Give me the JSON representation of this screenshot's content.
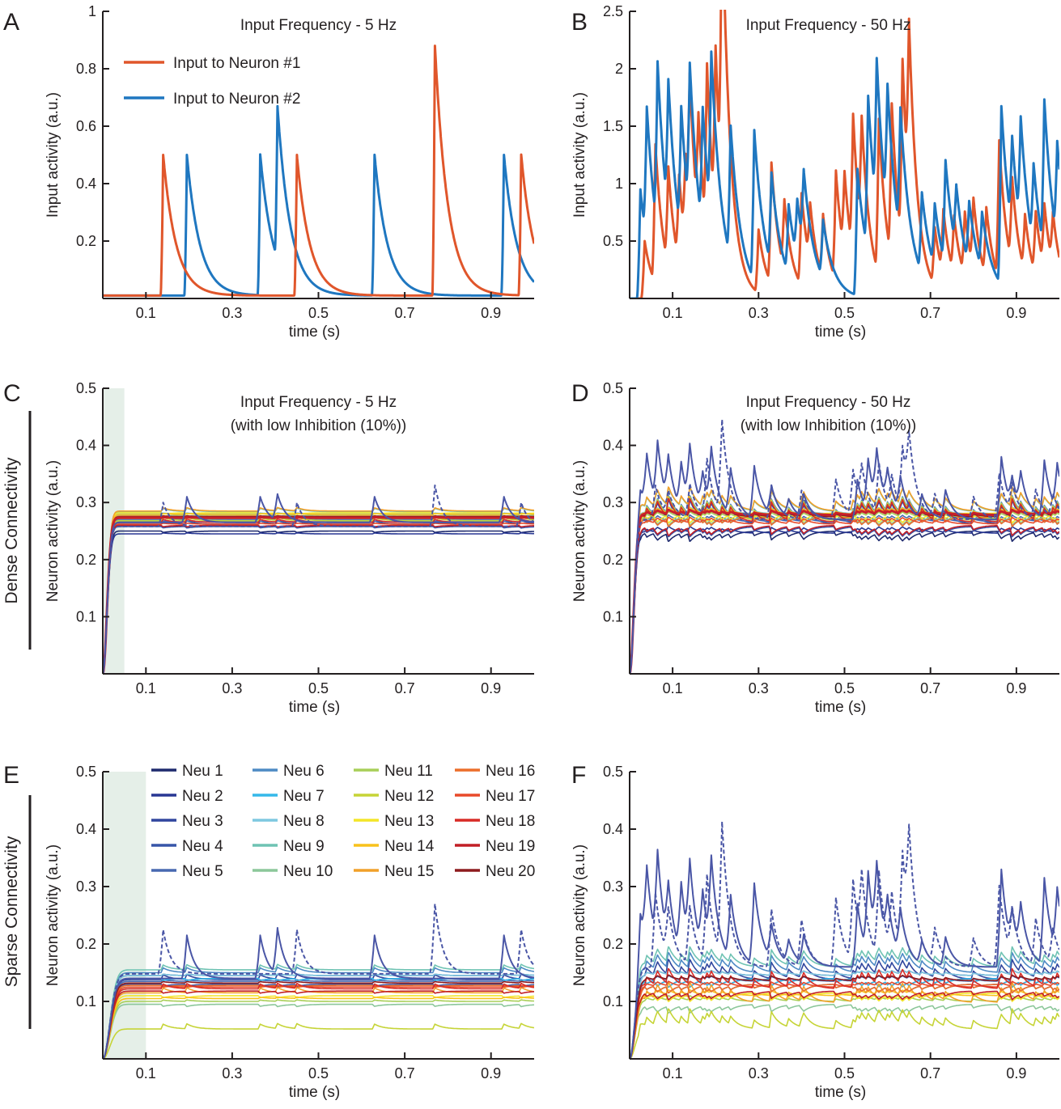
{
  "panel_letters": [
    "A",
    "B",
    "C",
    "D",
    "E",
    "F"
  ],
  "side_labels": {
    "dense": "Dense Connectivity",
    "sparse": "Sparse Connectivity"
  },
  "colors": {
    "input1": "#e0562b",
    "input2": "#1f77c0",
    "shade": "#e5efe8",
    "neurons": [
      "#1e2a6e",
      "#283793",
      "#30469e",
      "#3755a8",
      "#4869b1",
      "#4d8ac4",
      "#35b8e9",
      "#7ec8e0",
      "#6fc3b3",
      "#8cc79a",
      "#a8cf58",
      "#c6d436",
      "#f3e628",
      "#f8c21c",
      "#f1a02a",
      "#ec6e2a",
      "#e84a2a",
      "#d82b26",
      "#c21f26",
      "#8e1b1e"
    ]
  },
  "chart_data": [
    {
      "id": "A",
      "type": "line",
      "title": [
        "Input Frequency - 5 Hz"
      ],
      "xlabel": "time (s)",
      "ylabel": "Input activity (a.u.)",
      "xlim": [
        0,
        1
      ],
      "ylim": [
        0,
        1
      ],
      "xticks": [
        0.1,
        0.3,
        0.5,
        0.7,
        0.9
      ],
      "xtick_labels": [
        "0.1",
        "0.3",
        "0.5",
        "0.7",
        "0.9"
      ],
      "yticks": [
        0.2,
        0.4,
        0.6,
        0.8,
        1
      ],
      "ytick_labels": [
        "0.2",
        "0.4",
        "0.6",
        "0.8",
        "1"
      ],
      "legend": [
        "Input to Neuron #1",
        "Input to Neuron #2"
      ],
      "series": [
        {
          "name": "Input to Neuron #1",
          "baseline": 0.01,
          "tau": 0.03,
          "peaks": [
            [
              0.14,
              0.5
            ],
            [
              0.45,
              0.5
            ],
            [
              0.77,
              0.88
            ],
            [
              0.97,
              0.5
            ]
          ]
        },
        {
          "name": "Input to Neuron #2",
          "baseline": 0.01,
          "tau": 0.03,
          "peaks": [
            [
              0.195,
              0.5
            ],
            [
              0.365,
              0.5
            ],
            [
              0.405,
              0.54
            ],
            [
              0.63,
              0.5
            ],
            [
              0.93,
              0.5
            ]
          ]
        }
      ]
    },
    {
      "id": "B",
      "type": "line",
      "title": [
        "Input Frequency - 50 Hz"
      ],
      "xlabel": "time (s)",
      "ylabel": "Input activity (a.u.)",
      "xlim": [
        0,
        1
      ],
      "ylim": [
        0,
        2.5
      ],
      "xticks": [
        0.1,
        0.3,
        0.5,
        0.7,
        0.9
      ],
      "xtick_labels": [
        "0.1",
        "0.3",
        "0.5",
        "0.7",
        "0.9"
      ],
      "yticks": [
        0.5,
        1,
        1.5,
        2,
        2.5
      ],
      "ytick_labels": [
        "0.5",
        "1",
        "1.5",
        "2",
        "2.5"
      ],
      "series": [
        {
          "name": "Input to Neuron #1",
          "baseline": 0,
          "tau": 0.02,
          "peaks": [
            [
              0.035,
              0.5
            ],
            [
              0.06,
              1.2
            ],
            [
              0.09,
              0.85
            ],
            [
              0.115,
              0.75
            ],
            [
              0.13,
              0.75
            ],
            [
              0.14,
              1.2
            ],
            [
              0.16,
              0.9
            ],
            [
              0.18,
              1.45
            ],
            [
              0.2,
              1.45
            ],
            [
              0.215,
              2.45
            ],
            [
              0.3,
              0.55
            ],
            [
              0.33,
              1.05
            ],
            [
              0.36,
              0.6
            ],
            [
              0.4,
              0.8
            ],
            [
              0.42,
              0.5
            ],
            [
              0.45,
              0.55
            ],
            [
              0.48,
              0.95
            ],
            [
              0.5,
              0.7
            ],
            [
              0.52,
              1.2
            ],
            [
              0.54,
              1.0
            ],
            [
              0.58,
              1.35
            ],
            [
              0.61,
              1.35
            ],
            [
              0.635,
              1.6
            ],
            [
              0.65,
              1.45
            ],
            [
              0.71,
              0.5
            ],
            [
              0.73,
              0.55
            ],
            [
              0.755,
              0.5
            ],
            [
              0.78,
              0.55
            ],
            [
              0.8,
              0.6
            ],
            [
              0.83,
              0.6
            ],
            [
              0.86,
              1.2
            ],
            [
              0.89,
              0.75
            ],
            [
              0.92,
              0.5
            ],
            [
              0.945,
              0.55
            ],
            [
              0.965,
              0.55
            ],
            [
              0.985,
              0.45
            ]
          ]
        },
        {
          "name": "Input to Neuron #2",
          "baseline": 0,
          "tau": 0.025,
          "peaks": [
            [
              0.025,
              0.95
            ],
            [
              0.04,
              1.15
            ],
            [
              0.065,
              1.45
            ],
            [
              0.09,
              1.15
            ],
            [
              0.12,
              1.1
            ],
            [
              0.14,
              1.3
            ],
            [
              0.17,
              1.05
            ],
            [
              0.19,
              1.4
            ],
            [
              0.235,
              1.15
            ],
            [
              0.29,
              1.3
            ],
            [
              0.33,
              0.8
            ],
            [
              0.37,
              0.6
            ],
            [
              0.39,
              0.5
            ],
            [
              0.405,
              0.65
            ],
            [
              0.45,
              0.5
            ],
            [
              0.53,
              1.1
            ],
            [
              0.555,
              1.35
            ],
            [
              0.575,
              1.3
            ],
            [
              0.6,
              1.1
            ],
            [
              0.63,
              1.1
            ],
            [
              0.68,
              0.7
            ],
            [
              0.71,
              0.55
            ],
            [
              0.735,
              0.9
            ],
            [
              0.76,
              0.55
            ],
            [
              0.79,
              0.55
            ],
            [
              0.82,
              0.5
            ],
            [
              0.865,
              1.55
            ],
            [
              0.89,
              0.8
            ],
            [
              0.91,
              0.95
            ],
            [
              0.94,
              0.7
            ],
            [
              0.965,
              1.3
            ],
            [
              0.995,
              0.85
            ]
          ]
        }
      ]
    },
    {
      "id": "C",
      "type": "line",
      "title": [
        "Input Frequency - 5 Hz",
        "(with low Inhibition (10%))"
      ],
      "xlabel": "time (s)",
      "ylabel": "Neuron activity (a.u.)",
      "xlim": [
        0,
        1
      ],
      "ylim": [
        0,
        0.5
      ],
      "xticks": [
        0.1,
        0.3,
        0.5,
        0.7,
        0.9
      ],
      "xtick_labels": [
        "0.1",
        "0.3",
        "0.5",
        "0.7",
        "0.9"
      ],
      "yticks": [
        0.1,
        0.2,
        0.3,
        0.4,
        0.5
      ],
      "ytick_labels": [
        "0.1",
        "0.2",
        "0.3",
        "0.4",
        "0.5"
      ],
      "shade_x": [
        0,
        0.05
      ],
      "rise_tau": 0.012,
      "levels": [
        0.25,
        0.245,
        0.262,
        0.258,
        0.266,
        0.27,
        0.276,
        0.28,
        0.284,
        0.278,
        0.272,
        0.268,
        0.282,
        0.279,
        0.285,
        0.276,
        0.262,
        0.265,
        0.26,
        0.275
      ],
      "bump_scale": 0.004,
      "red_highlight": 0.273,
      "active_solid": {
        "level": 0.265,
        "peaks": [
          [
            0.195,
            0.31
          ],
          [
            0.365,
            0.31
          ],
          [
            0.405,
            0.31
          ],
          [
            0.63,
            0.31
          ],
          [
            0.93,
            0.31
          ]
        ]
      },
      "active_dashed": {
        "level": 0.258,
        "peaks": [
          [
            0.14,
            0.3
          ],
          [
            0.45,
            0.3
          ],
          [
            0.77,
            0.33
          ],
          [
            0.97,
            0.3
          ]
        ]
      }
    },
    {
      "id": "D",
      "type": "line",
      "title": [
        "Input Frequency - 50 Hz",
        "(with low Inhibition (10%))"
      ],
      "xlabel": "time (s)",
      "ylabel": "Neuron activity (a.u.)",
      "xlim": [
        0,
        1
      ],
      "ylim": [
        0,
        0.5
      ],
      "xticks": [
        0.1,
        0.3,
        0.5,
        0.7,
        0.9
      ],
      "xtick_labels": [
        "0.1",
        "0.3",
        "0.5",
        "0.7",
        "0.9"
      ],
      "yticks": [
        0.1,
        0.2,
        0.3,
        0.4,
        0.5
      ],
      "ytick_labels": [
        "0.1",
        "0.2",
        "0.3",
        "0.4",
        "0.5"
      ],
      "rise_tau": 0.012,
      "levels": [
        0.25,
        0.246,
        0.262,
        0.258,
        0.266,
        0.27,
        0.276,
        0.28,
        0.284,
        0.278,
        0.272,
        0.268,
        0.282,
        0.279,
        0.285,
        0.276,
        0.262,
        0.265,
        0.26,
        0.275
      ],
      "bump_scale": 0.012,
      "red_highlight": 0.278,
      "active_solid": {
        "level": 0.27,
        "peaks": [
          [
            0.025,
            0.33
          ],
          [
            0.04,
            0.36
          ],
          [
            0.065,
            0.38
          ],
          [
            0.09,
            0.35
          ],
          [
            0.12,
            0.35
          ],
          [
            0.14,
            0.37
          ],
          [
            0.17,
            0.33
          ],
          [
            0.19,
            0.37
          ],
          [
            0.235,
            0.35
          ],
          [
            0.29,
            0.36
          ],
          [
            0.33,
            0.32
          ],
          [
            0.37,
            0.3
          ],
          [
            0.405,
            0.31
          ],
          [
            0.53,
            0.34
          ],
          [
            0.555,
            0.36
          ],
          [
            0.575,
            0.36
          ],
          [
            0.6,
            0.33
          ],
          [
            0.63,
            0.33
          ],
          [
            0.68,
            0.31
          ],
          [
            0.735,
            0.32
          ],
          [
            0.865,
            0.38
          ],
          [
            0.89,
            0.32
          ],
          [
            0.91,
            0.33
          ],
          [
            0.965,
            0.37
          ],
          [
            0.995,
            0.35
          ]
        ]
      },
      "active_dashed": {
        "level": 0.27,
        "peaks": [
          [
            0.06,
            0.33
          ],
          [
            0.09,
            0.31
          ],
          [
            0.14,
            0.33
          ],
          [
            0.18,
            0.37
          ],
          [
            0.215,
            0.43
          ],
          [
            0.33,
            0.33
          ],
          [
            0.4,
            0.32
          ],
          [
            0.48,
            0.34
          ],
          [
            0.52,
            0.35
          ],
          [
            0.54,
            0.34
          ],
          [
            0.58,
            0.36
          ],
          [
            0.61,
            0.33
          ],
          [
            0.635,
            0.38
          ],
          [
            0.65,
            0.37
          ],
          [
            0.71,
            0.31
          ],
          [
            0.8,
            0.31
          ],
          [
            0.86,
            0.35
          ],
          [
            0.89,
            0.32
          ],
          [
            0.945,
            0.32
          ],
          [
            0.985,
            0.31
          ]
        ]
      }
    },
    {
      "id": "E",
      "type": "line",
      "title": [],
      "xlabel": "time (s)",
      "ylabel": "Neuron activity (a.u.)",
      "xlim": [
        0,
        1
      ],
      "ylim": [
        0,
        0.5
      ],
      "xticks": [
        0.1,
        0.3,
        0.5,
        0.7,
        0.9
      ],
      "xtick_labels": [
        "0.1",
        "0.3",
        "0.5",
        "0.7",
        "0.9"
      ],
      "yticks": [
        0.1,
        0.2,
        0.3,
        0.4,
        0.5
      ],
      "ytick_labels": [
        "0.1",
        "0.2",
        "0.3",
        "0.4",
        "0.5"
      ],
      "shade_x": [
        0,
        0.1
      ],
      "rise_tau": 0.02,
      "levels": [
        0.14,
        0.145,
        0.138,
        0.13,
        0.135,
        0.15,
        0.14,
        0.145,
        0.155,
        0.095,
        0.1,
        0.052,
        0.11,
        0.105,
        0.115,
        0.128,
        0.125,
        0.122,
        0.118,
        0.132
      ],
      "bump_scale": 0.006,
      "red_highlight": null,
      "active_solid": {
        "level": 0.14,
        "peaks": [
          [
            0.195,
            0.215
          ],
          [
            0.365,
            0.215
          ],
          [
            0.405,
            0.22
          ],
          [
            0.63,
            0.215
          ],
          [
            0.93,
            0.215
          ]
        ]
      },
      "active_dashed": {
        "level": 0.148,
        "peaks": [
          [
            0.14,
            0.225
          ],
          [
            0.45,
            0.225
          ],
          [
            0.77,
            0.27
          ],
          [
            0.97,
            0.225
          ]
        ]
      },
      "legend": [
        "Neu 1",
        "Neu 2",
        "Neu 3",
        "Neu 4",
        "Neu 5",
        "Neu 6",
        "Neu 7",
        "Neu 8",
        "Neu 9",
        "Neu 10",
        "Neu 11",
        "Neu 12",
        "Neu 13",
        "Neu 14",
        "Neu 15",
        "Neu 16",
        "Neu 17",
        "Neu 18",
        "Neu 19",
        "Neu 20"
      ]
    },
    {
      "id": "F",
      "type": "line",
      "title": [],
      "xlabel": "time (s)",
      "ylabel": "Neuron activity (a.u.)",
      "xlim": [
        0,
        1
      ],
      "ylim": [
        0,
        0.5
      ],
      "xticks": [
        0.1,
        0.3,
        0.5,
        0.7,
        0.9
      ],
      "xtick_labels": [
        "0.1",
        "0.3",
        "0.5",
        "0.7",
        "0.9"
      ],
      "yticks": [
        0.1,
        0.2,
        0.3,
        0.4,
        0.5
      ],
      "ytick_labels": [
        "0.1",
        "0.2",
        "0.3",
        "0.4",
        "0.5"
      ],
      "rise_tau": 0.015,
      "levels": [
        0.14,
        0.145,
        0.138,
        0.13,
        0.135,
        0.15,
        0.14,
        0.145,
        0.16,
        0.095,
        0.1,
        0.052,
        0.115,
        0.11,
        0.098,
        0.13,
        0.125,
        0.122,
        0.118,
        0.136
      ],
      "bump_scale": 0.01,
      "red_highlight": null,
      "active_solid": {
        "level": 0.16,
        "peaks": [
          [
            0.025,
            0.27
          ],
          [
            0.04,
            0.29
          ],
          [
            0.065,
            0.32
          ],
          [
            0.09,
            0.26
          ],
          [
            0.12,
            0.28
          ],
          [
            0.14,
            0.3
          ],
          [
            0.17,
            0.26
          ],
          [
            0.19,
            0.31
          ],
          [
            0.235,
            0.27
          ],
          [
            0.29,
            0.3
          ],
          [
            0.33,
            0.22
          ],
          [
            0.37,
            0.2
          ],
          [
            0.405,
            0.21
          ],
          [
            0.53,
            0.27
          ],
          [
            0.555,
            0.3
          ],
          [
            0.575,
            0.29
          ],
          [
            0.6,
            0.24
          ],
          [
            0.63,
            0.24
          ],
          [
            0.68,
            0.2
          ],
          [
            0.735,
            0.21
          ],
          [
            0.865,
            0.33
          ],
          [
            0.89,
            0.22
          ],
          [
            0.91,
            0.24
          ],
          [
            0.965,
            0.31
          ],
          [
            0.995,
            0.27
          ]
        ]
      },
      "active_dashed": {
        "level": 0.16,
        "peaks": [
          [
            0.06,
            0.29
          ],
          [
            0.09,
            0.24
          ],
          [
            0.14,
            0.26
          ],
          [
            0.18,
            0.31
          ],
          [
            0.215,
            0.39
          ],
          [
            0.33,
            0.26
          ],
          [
            0.4,
            0.24
          ],
          [
            0.48,
            0.28
          ],
          [
            0.52,
            0.3
          ],
          [
            0.54,
            0.28
          ],
          [
            0.58,
            0.31
          ],
          [
            0.61,
            0.26
          ],
          [
            0.635,
            0.33
          ],
          [
            0.65,
            0.32
          ],
          [
            0.71,
            0.22
          ],
          [
            0.8,
            0.21
          ],
          [
            0.86,
            0.3
          ],
          [
            0.89,
            0.24
          ],
          [
            0.945,
            0.24
          ],
          [
            0.985,
            0.22
          ]
        ]
      }
    }
  ]
}
